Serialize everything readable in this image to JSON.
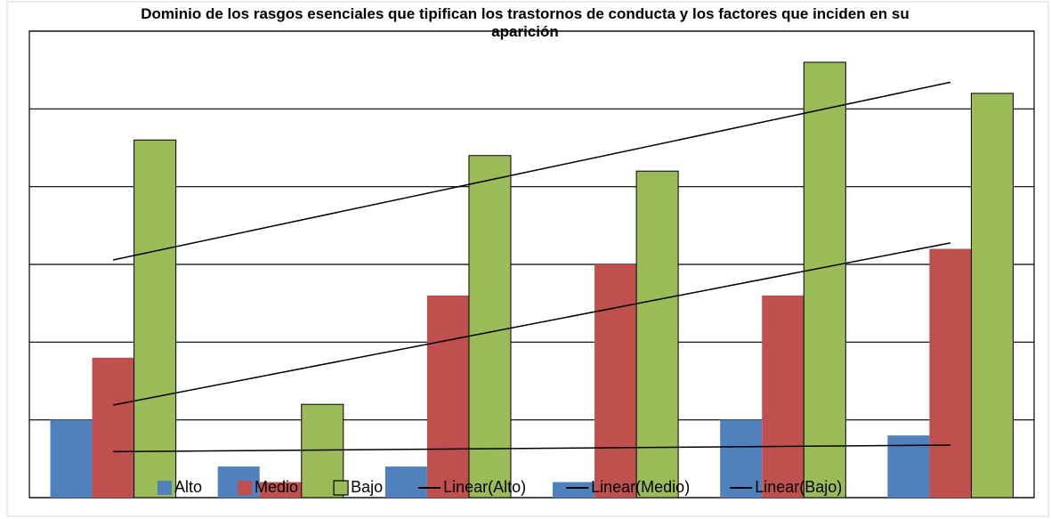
{
  "chart_data": {
    "type": "bar",
    "title": "Dominio de los rasgos esenciales que tipifican los trastornos de conducta y los factores que inciden en su aparición",
    "categories": [
      null,
      null,
      null,
      null,
      null,
      null
    ],
    "series": [
      {
        "name": "Alto",
        "color": "#4f81bd",
        "values": [
          1.0,
          0.4,
          0.4,
          0.2,
          1.0,
          0.8
        ],
        "trend_name": "Linear(Alto)"
      },
      {
        "name": "Medio",
        "color": "#c0504d",
        "values": [
          1.8,
          0.2,
          2.6,
          3.0,
          2.6,
          3.2
        ],
        "trend_name": "Linear(Medio)"
      },
      {
        "name": "Bajo",
        "color": "#9bbb59",
        "values": [
          4.6,
          1.2,
          4.4,
          4.2,
          5.6,
          5.2
        ],
        "trend_name": "Linear(Bajo)",
        "outline": "#000000"
      }
    ],
    "trend_color": "#000000",
    "ylim": [
      0,
      6
    ],
    "yticks": [
      0,
      1,
      2,
      3,
      4,
      5,
      6
    ],
    "grid": true,
    "legend": "bottom"
  }
}
